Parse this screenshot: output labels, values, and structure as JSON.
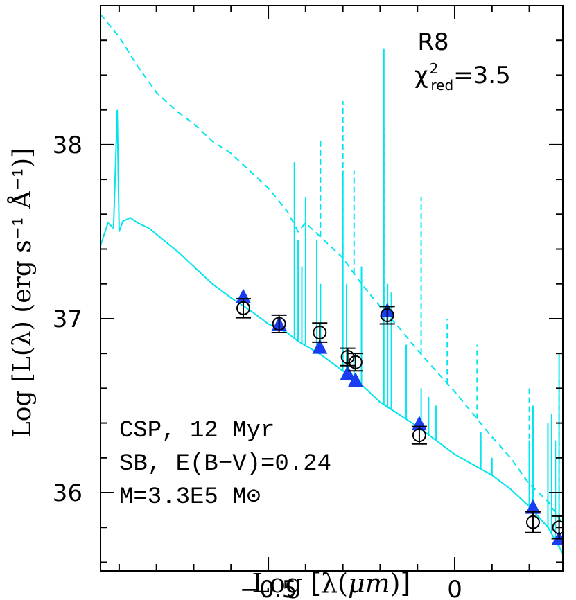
{
  "chart_data": {
    "type": "line",
    "title": "R8",
    "stat": {
      "symbol": "χ",
      "sup": "2",
      "sub": "red",
      "value": "=3.5"
    },
    "xlabel": {
      "prefix": "Log [λ(",
      "unit": "μm",
      "suffix": ")]"
    },
    "ylabel": "Log [L(λ) (erg s⁻¹ Å⁻¹)]",
    "xlim": [
      -0.95,
      0.29
    ],
    "ylim": [
      35.55,
      38.8
    ],
    "x_ticks": [
      {
        "value": -0.5,
        "label": "−0.5"
      },
      {
        "value": 0,
        "label": "0"
      }
    ],
    "y_ticks": [
      {
        "value": 36,
        "label": "36"
      },
      {
        "value": 37,
        "label": "37"
      },
      {
        "value": 38,
        "label": "38"
      }
    ],
    "annotation_lines": [
      "CSP, 12 Myr",
      "SB, E(B−V)=0.24",
      "M=3.3E5 M⊙"
    ],
    "colors": {
      "model": "#00e5ee",
      "triangle": "#1a3cf0",
      "axes": "#000000"
    },
    "series": [
      {
        "name": "attenuated model spectrum",
        "style": "solid",
        "x": [
          -0.95,
          -0.93,
          -0.915,
          -0.905,
          -0.9,
          -0.89,
          -0.87,
          -0.85,
          -0.82,
          -0.78,
          -0.74,
          -0.7,
          -0.65,
          -0.6,
          -0.55,
          -0.5,
          -0.45,
          -0.42,
          -0.38,
          -0.35,
          -0.3,
          -0.25,
          -0.2,
          -0.15,
          -0.1,
          -0.05,
          0,
          0.05,
          0.1,
          0.15,
          0.2,
          0.25,
          0.29
        ],
        "y": [
          37.42,
          37.55,
          37.52,
          38.2,
          37.5,
          37.56,
          37.58,
          37.55,
          37.52,
          37.45,
          37.38,
          37.3,
          37.2,
          37.12,
          37.05,
          36.97,
          36.92,
          36.87,
          36.82,
          36.78,
          36.7,
          36.62,
          36.52,
          36.45,
          36.38,
          36.3,
          36.22,
          36.16,
          36.1,
          36.02,
          35.92,
          35.8,
          35.65
        ]
      },
      {
        "name": "intrinsic model spectrum",
        "style": "dashed",
        "x": [
          -0.95,
          -0.9,
          -0.85,
          -0.8,
          -0.75,
          -0.7,
          -0.65,
          -0.6,
          -0.55,
          -0.5,
          -0.45,
          -0.42,
          -0.4,
          -0.35,
          -0.3,
          -0.25,
          -0.2,
          -0.15,
          -0.1,
          -0.05,
          0,
          0.05,
          0.1,
          0.15,
          0.2,
          0.25,
          0.29
        ],
        "y": [
          38.75,
          38.62,
          38.45,
          38.3,
          38.2,
          38.12,
          38.02,
          37.95,
          37.85,
          37.75,
          37.62,
          37.5,
          37.55,
          37.45,
          37.35,
          37.2,
          37.07,
          36.95,
          36.82,
          36.7,
          36.58,
          36.45,
          36.32,
          36.2,
          36.05,
          35.95,
          35.82
        ]
      },
      {
        "name": "emission lines (attenuated)",
        "style": "spikes",
        "x": [
          -0.43,
          -0.42,
          -0.41,
          -0.4,
          -0.37,
          -0.36,
          -0.3,
          -0.29,
          -0.27,
          -0.25,
          -0.19,
          -0.18,
          -0.17,
          -0.13,
          -0.09,
          -0.07,
          -0.05,
          0.07,
          0.1,
          0.2,
          0.21,
          0.25,
          0.26,
          0.27,
          0.28
        ],
        "y": [
          37.9,
          37.45,
          37.3,
          37.7,
          37.45,
          37.2,
          37.85,
          37.2,
          36.8,
          37.3,
          38.55,
          37.2,
          37.15,
          36.85,
          36.6,
          36.55,
          36.5,
          36.35,
          36.2,
          36.3,
          36.5,
          36.4,
          36.45,
          36.3,
          36.8
        ]
      },
      {
        "name": "emission lines (intrinsic)",
        "style": "dashed-spikes",
        "x": [
          -0.36,
          -0.3,
          -0.27,
          -0.19,
          -0.09,
          -0.02,
          0.06,
          0.2,
          0.28
        ],
        "y": [
          38.02,
          38.25,
          37.85,
          38.1,
          37.7,
          37.0,
          36.85,
          36.6,
          36.65
        ]
      },
      {
        "name": "observed photometry",
        "marker": "open-circle",
        "x": [
          -0.567,
          -0.471,
          -0.362,
          -0.287,
          -0.266,
          -0.181,
          -0.095,
          0.21,
          0.28
        ],
        "y": [
          37.06,
          36.97,
          36.92,
          36.78,
          36.75,
          37.02,
          36.33,
          35.83,
          35.8
        ],
        "err": [
          0.055,
          0.05,
          0.055,
          0.05,
          0.05,
          0.05,
          0.05,
          0.06,
          0.065
        ]
      },
      {
        "name": "model synthetic photometry",
        "marker": "filled-triangle",
        "x": [
          -0.567,
          -0.471,
          -0.362,
          -0.287,
          -0.266,
          -0.181,
          -0.095,
          0.21,
          0.28
        ],
        "y": [
          37.12,
          36.96,
          36.83,
          36.68,
          36.64,
          37.04,
          36.39,
          35.91,
          35.73
        ]
      }
    ]
  }
}
